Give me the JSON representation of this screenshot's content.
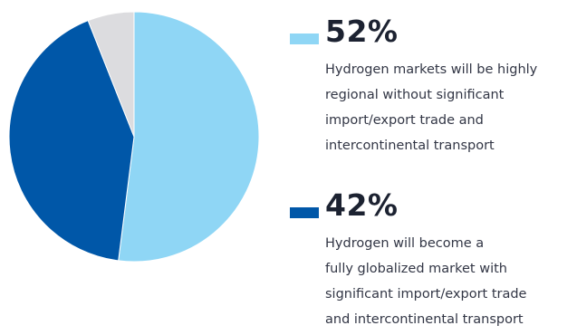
{
  "colors": {
    "light_blue": "#8fd6f5",
    "dark_blue": "#0057a8",
    "grey": "#dcdcdf"
  },
  "chart_data": {
    "type": "pie",
    "slices": [
      {
        "value": 52,
        "color": "#8fd6f5"
      },
      {
        "value": 42,
        "color": "#0057a8"
      },
      {
        "value": 6,
        "color": "#dcdcdf"
      }
    ]
  },
  "legend": [
    {
      "percent": "52%",
      "color": "#8fd6f5",
      "lines": [
        "Hydrogen markets will be highly",
        "regional without significant",
        "import/export trade and",
        "intercontinental transport"
      ]
    },
    {
      "percent": "42%",
      "color": "#0057a8",
      "lines": [
        "Hydrogen will become a",
        "fully globalized market with",
        "significant import/export trade",
        "and intercontinental transport"
      ]
    }
  ]
}
